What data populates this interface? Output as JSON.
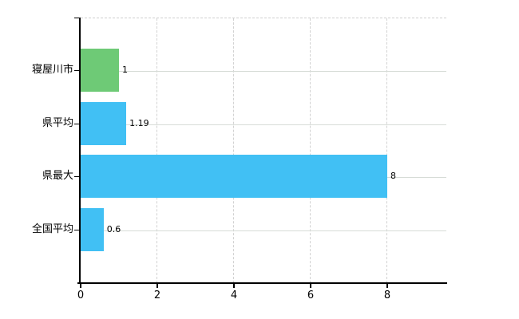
{
  "colors": {
    "green_bar": "#6eca76",
    "blue_bar": "#41c0f4",
    "grid_solid": "#d7dcd7",
    "grid_dashed": "#d2d2d2",
    "axis": "#000000",
    "text": "#000000",
    "background": "#ffffff"
  },
  "chart_data": {
    "type": "bar",
    "orientation": "horizontal",
    "title": "",
    "xlabel": "",
    "ylabel": "",
    "categories": [
      "寝屋川市",
      "県平均",
      "県最大",
      "全国平均"
    ],
    "values": [
      1,
      1.19,
      8,
      0.6
    ],
    "value_labels": [
      "1",
      "1.19",
      "8",
      "0.6"
    ],
    "bar_colors": [
      "#6eca76",
      "#41c0f4",
      "#41c0f4",
      "#41c0f4"
    ],
    "x_ticks": [
      0,
      2,
      4,
      6,
      8
    ],
    "x_tick_labels": [
      "0",
      "2",
      "4",
      "6",
      "8"
    ],
    "xlim": [
      0,
      9.54
    ],
    "grid": true,
    "legend": null
  }
}
